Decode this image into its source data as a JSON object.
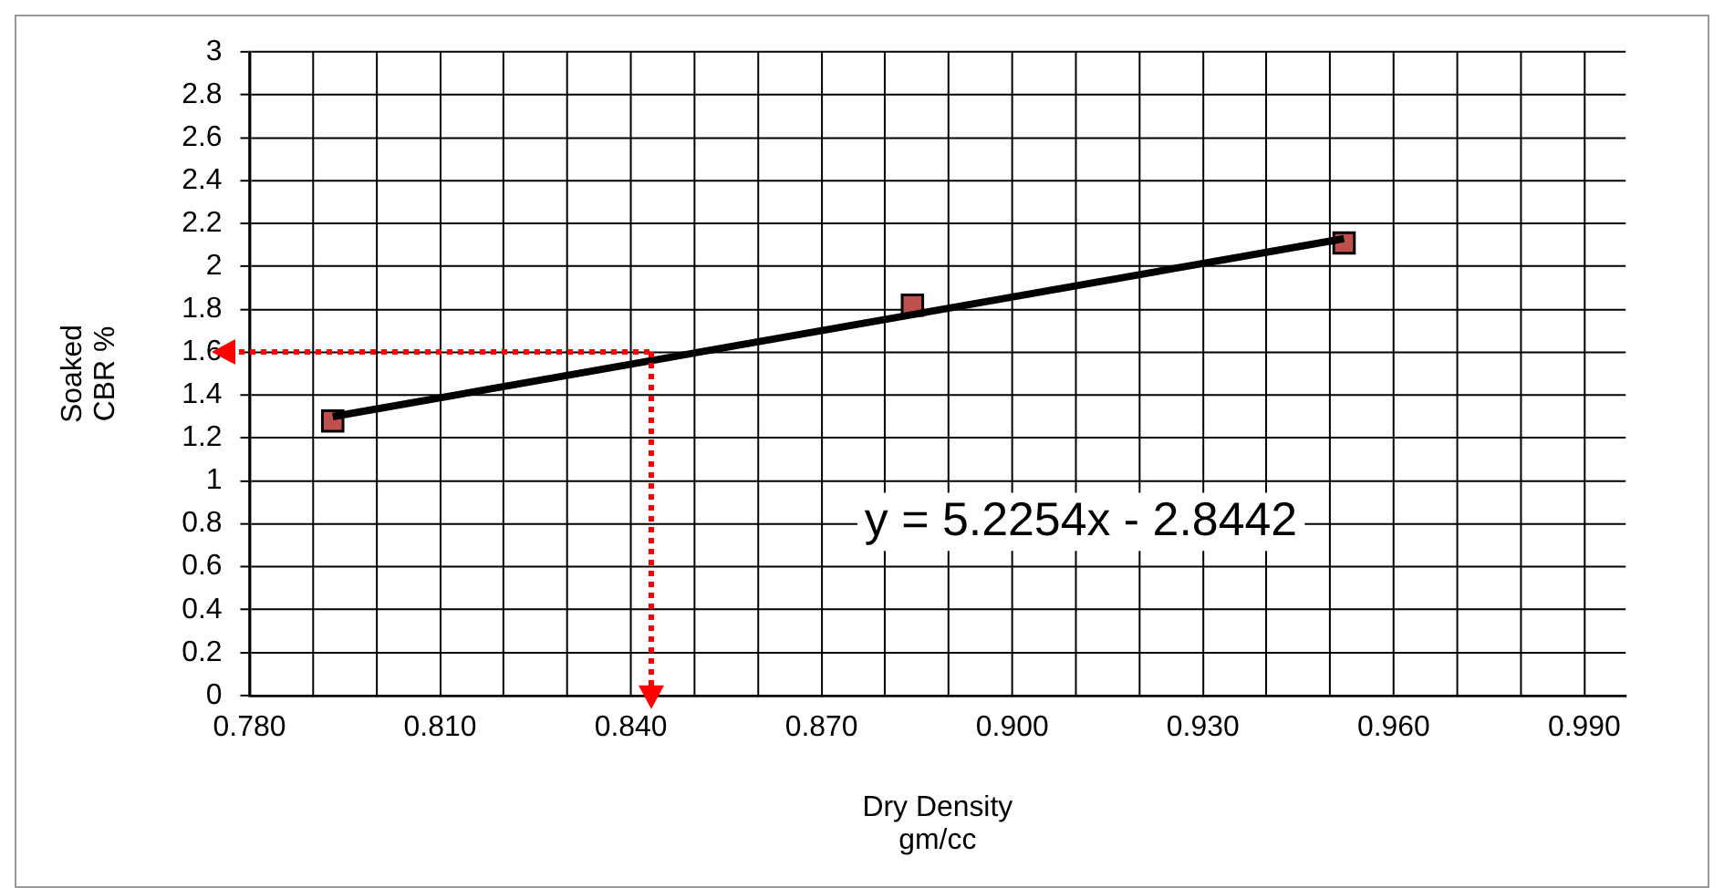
{
  "chart_data": {
    "type": "scatter",
    "xlabel": "Dry Density\ngm/cc",
    "ylabel": "Soaked\nCBR %",
    "series": [
      {
        "color": "#c0504d",
        "marker": "square",
        "x": [
          0.7931,
          0.8843,
          0.9522
        ],
        "values": [
          1.28,
          1.82,
          2.11
        ]
      },
      {
        "type": "line",
        "color": "#000000",
        "marker": "none",
        "x": [
          0.7931,
          0.9522
        ],
        "values": [
          1.3,
          2.13
        ]
      }
    ],
    "xlim": [
      0.78,
      0.9965
    ],
    "xticks": [
      {
        "value": 0.78,
        "label": "0.780"
      },
      {
        "value": 0.79,
        "label": null
      },
      {
        "value": 0.8,
        "label": null
      },
      {
        "value": 0.81,
        "label": "0.810"
      },
      {
        "value": 0.82,
        "label": null
      },
      {
        "value": 0.83,
        "label": null
      },
      {
        "value": 0.84,
        "label": "0.840"
      },
      {
        "value": 0.85,
        "label": null
      },
      {
        "value": 0.86,
        "label": null
      },
      {
        "value": 0.87,
        "label": "0.870"
      },
      {
        "value": 0.88,
        "label": null
      },
      {
        "value": 0.89,
        "label": null
      },
      {
        "value": 0.9,
        "label": "0.900"
      },
      {
        "value": 0.91,
        "label": null
      },
      {
        "value": 0.92,
        "label": null
      },
      {
        "value": 0.93,
        "label": "0.930"
      },
      {
        "value": 0.94,
        "label": null
      },
      {
        "value": 0.95,
        "label": null
      },
      {
        "value": 0.96,
        "label": "0.960"
      },
      {
        "value": 0.97,
        "label": null
      },
      {
        "value": 0.98,
        "label": null
      },
      {
        "value": 0.99,
        "label": "0.990"
      }
    ],
    "ylim": [
      0,
      3
    ],
    "yticks": [
      0,
      0.2,
      0.4,
      0.6,
      0.8,
      1,
      1.2,
      1.4,
      1.6,
      1.8,
      2,
      2.2,
      2.4,
      2.6,
      2.8,
      3
    ],
    "grid": true,
    "annotations": [
      "y = 5.2254x - 2.8442"
    ]
  }
}
